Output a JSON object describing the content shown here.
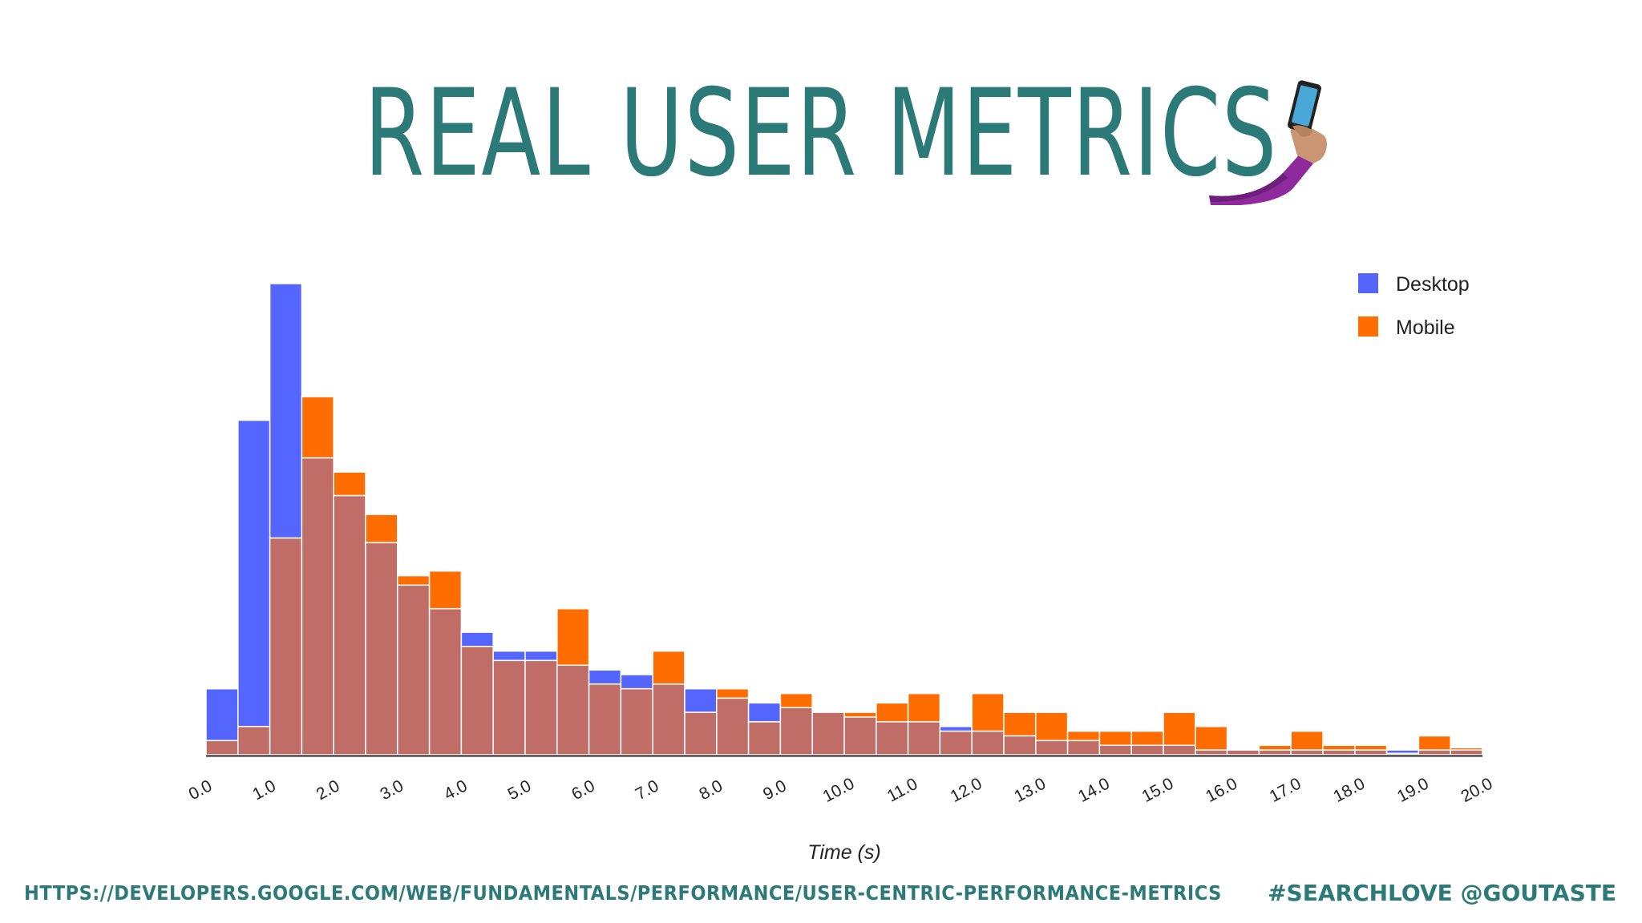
{
  "slide": {
    "title": "REAL USER METRICS",
    "icon": "selfie-arm-icon",
    "footer_url": "HTTPS://DEVELOPERS.GOOGLE.COM/WEB/FUNDAMENTALS/PERFORMANCE/USER-CENTRIC-PERFORMANCE-METRICS",
    "footer_handle": "#SEARCHLOVE @GOUTASTE",
    "accent_color": "#2b7a78"
  },
  "chart_data": {
    "type": "bar",
    "xlabel": "Time (s)",
    "ylabel": "",
    "xlim": [
      0,
      20
    ],
    "ylim": [
      0,
      100
    ],
    "bin_width": 0.5,
    "x_ticks": [
      "0.0",
      "1.0",
      "2.0",
      "3.0",
      "4.0",
      "5.0",
      "6.0",
      "7.0",
      "8.0",
      "9.0",
      "10.0",
      "11.0",
      "12.0",
      "13.0",
      "14.0",
      "15.0",
      "16.0",
      "17.0",
      "18.0",
      "19.0",
      "20.0"
    ],
    "legend": {
      "position": "top-right"
    },
    "colors": {
      "desktop": "#5566ff",
      "mobile": "#ff6d00",
      "overlap": "#bf6d66"
    },
    "series": [
      {
        "name": "Desktop",
        "values": [
          14,
          71,
          100,
          63,
          55,
          45,
          36,
          31,
          26,
          22,
          22,
          19,
          18,
          17,
          15,
          14,
          12,
          11,
          10,
          9,
          8,
          7,
          7,
          6,
          5,
          4,
          3,
          3,
          2,
          2,
          2,
          1,
          1,
          1,
          1,
          1,
          1,
          1,
          1,
          1
        ]
      },
      {
        "name": "Mobile",
        "values": [
          3,
          6,
          46,
          76,
          60,
          51,
          38,
          39,
          23,
          20,
          20,
          31,
          15,
          14,
          22,
          9,
          14,
          7,
          13,
          9,
          9,
          11,
          13,
          5,
          13,
          9,
          9,
          5,
          5,
          5,
          9,
          6,
          1,
          2,
          5,
          2,
          2,
          0.3,
          4,
          1.5
        ]
      }
    ]
  }
}
